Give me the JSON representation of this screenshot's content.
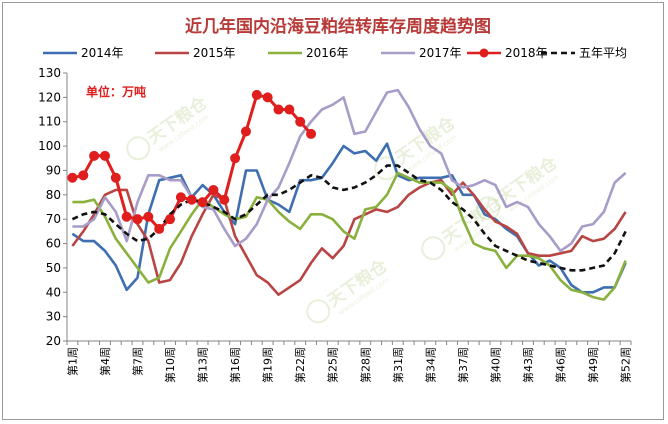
{
  "chart_data": {
    "type": "line",
    "title": "近几年国内沿海豆粕结转库存周度趋势图",
    "unit_label": "单位：万吨",
    "watermark": "天下粮仓",
    "watermark_url": "www.cofeed.com",
    "ylim": [
      20,
      130
    ],
    "yticks": [
      20,
      30,
      40,
      50,
      60,
      70,
      80,
      90,
      100,
      110,
      120,
      130
    ],
    "grid": false,
    "legend_position": "top",
    "x_tick_labels": [
      "第1周",
      "第4周",
      "第7周",
      "第10周",
      "第13周",
      "第16周",
      "第19周",
      "第22周",
      "第25周",
      "第28周",
      "第31周",
      "第34周",
      "第37周",
      "第40周",
      "第43周",
      "第46周",
      "第49周",
      "第52周"
    ],
    "x_tick_weeks": [
      1,
      4,
      7,
      10,
      13,
      16,
      19,
      22,
      25,
      28,
      31,
      34,
      37,
      40,
      43,
      46,
      49,
      52
    ],
    "series": [
      {
        "name": "2014年",
        "color": "#3e6fb0",
        "style": "solid",
        "markers": false,
        "values": [
          64,
          61,
          61,
          57,
          51,
          41,
          46,
          72,
          86,
          87,
          88,
          79,
          84,
          80,
          73,
          68,
          90,
          90,
          78,
          76,
          73,
          86,
          86,
          87,
          93,
          100,
          97,
          98,
          94,
          101,
          88,
          86,
          87,
          87,
          87,
          88,
          80,
          80,
          72,
          70,
          66,
          63,
          56,
          51,
          53,
          50,
          43,
          40,
          40,
          42,
          42,
          52
        ]
      },
      {
        "name": "2015年",
        "color": "#b84543",
        "style": "solid",
        "markers": false,
        "values": [
          59,
          65,
          72,
          80,
          82,
          82,
          68,
          61,
          44,
          45,
          52,
          63,
          72,
          80,
          78,
          63,
          55,
          47,
          44,
          39,
          42,
          45,
          52,
          58,
          54,
          59,
          70,
          72,
          74,
          73,
          75,
          80,
          83,
          85,
          86,
          80,
          85,
          80,
          74,
          69,
          67,
          64,
          56,
          55,
          55,
          56,
          57,
          63,
          61,
          62,
          66,
          73
        ]
      },
      {
        "name": "2016年",
        "color": "#8ab03e",
        "style": "solid",
        "markers": false,
        "values": [
          77,
          77,
          78,
          71,
          62,
          56,
          50,
          44,
          46,
          58,
          65,
          72,
          78,
          75,
          72,
          70,
          71,
          79,
          78,
          73,
          69,
          66,
          72,
          72,
          70,
          65,
          62,
          74,
          75,
          80,
          89,
          87,
          85,
          85,
          85,
          82,
          70,
          60,
          58,
          57,
          50,
          55,
          55,
          54,
          51,
          45,
          41,
          40,
          38,
          37,
          42,
          53
        ]
      },
      {
        "name": "2017年",
        "color": "#a89cc8",
        "style": "solid",
        "markers": false,
        "values": [
          67,
          67,
          70,
          79,
          73,
          61,
          77,
          88,
          88,
          86,
          86,
          79,
          75,
          74,
          66,
          59,
          62,
          68,
          78,
          83,
          93,
          104,
          110,
          115,
          117,
          120,
          105,
          106,
          114,
          122,
          123,
          116,
          107,
          100,
          97,
          86,
          83,
          84,
          86,
          84,
          75,
          77,
          75,
          68,
          63,
          57,
          60,
          67,
          68,
          73,
          85,
          89
        ]
      },
      {
        "name": "2018年",
        "color": "#e01e1e",
        "style": "solid",
        "markers": true,
        "values": [
          87,
          88,
          96,
          96,
          87,
          71,
          70,
          71,
          66,
          70,
          79,
          78,
          77,
          82,
          78,
          95,
          106,
          121,
          120,
          115,
          115,
          110,
          105
        ]
      },
      {
        "name": "五年平均",
        "color": "#111111",
        "style": "dashed",
        "markers": false,
        "values": [
          70,
          72,
          73,
          72,
          68,
          64,
          61,
          62,
          66,
          72,
          76,
          78,
          77,
          75,
          73,
          70,
          72,
          76,
          80,
          80,
          82,
          85,
          88,
          87,
          83,
          82,
          83,
          85,
          88,
          92,
          92,
          89,
          86,
          85,
          82,
          77,
          74,
          70,
          64,
          59,
          57,
          55,
          53,
          52,
          51,
          50,
          49,
          49,
          50,
          51,
          56,
          65
        ]
      }
    ]
  }
}
